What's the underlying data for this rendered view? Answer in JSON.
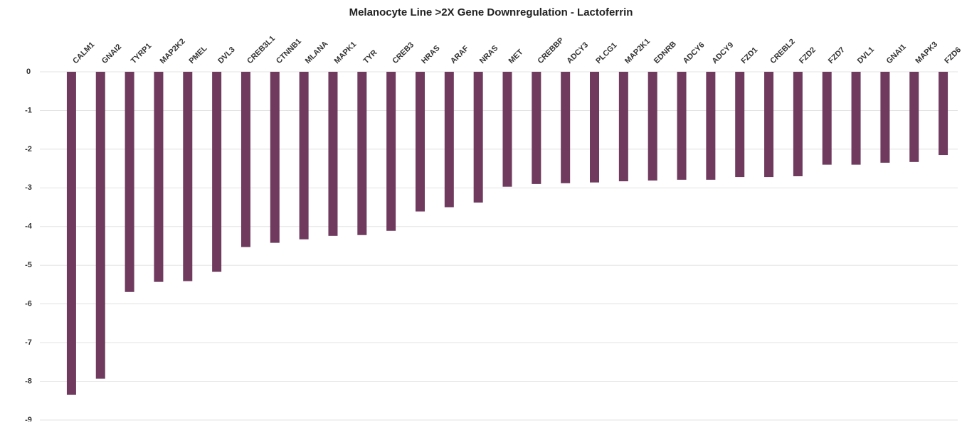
{
  "chart_data": {
    "type": "bar",
    "title": "Melanocyte Line >2X Gene Downregulation - Lactoferrin",
    "categories": [
      "CALM1",
      "GNAI2",
      "TYRP1",
      "MAP2K2",
      "PMEL",
      "DVL3",
      "CREB3L1",
      "CTNNB1",
      "MLANA",
      "MAPK1",
      "TYR",
      "CREB3",
      "HRAS",
      "ARAF",
      "NRAS",
      "MET",
      "CREBBP",
      "ADCY3",
      "PLCG1",
      "MAP2K1",
      "EDNRB",
      "ADCY6",
      "ADCY9",
      "FZD1",
      "CREBL2",
      "FZD2",
      "FZD7",
      "DVL1",
      "GNAI1",
      "MAPK3",
      "FZD6"
    ],
    "values": [
      -8.35,
      -7.93,
      -5.69,
      -5.43,
      -5.41,
      -5.17,
      -4.53,
      -4.42,
      -4.33,
      -4.24,
      -4.22,
      -4.11,
      -3.61,
      -3.5,
      -3.38,
      -2.97,
      -2.9,
      -2.88,
      -2.86,
      -2.83,
      -2.81,
      -2.79,
      -2.79,
      -2.72,
      -2.72,
      -2.7,
      -2.4,
      -2.4,
      -2.35,
      -2.33,
      -2.15
    ],
    "color": "#6f3a5e",
    "ylim": [
      -9,
      0
    ],
    "yticks": [
      0,
      -1,
      -2,
      -3,
      -4,
      -5,
      -6,
      -7,
      -8,
      -9
    ],
    "grid": true
  }
}
